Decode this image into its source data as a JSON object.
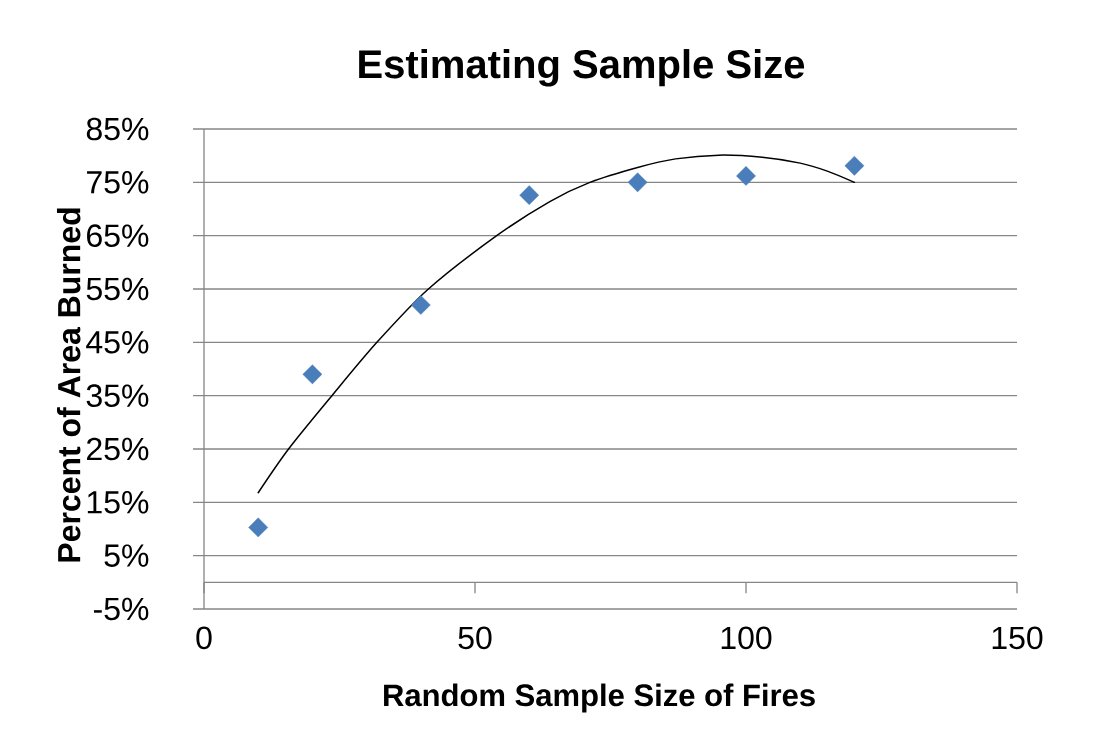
{
  "chart_data": {
    "type": "scatter",
    "title": "Estimating Sample Size",
    "xlabel": "Random Sample Size of Fires",
    "ylabel": "Percent of Area Burned",
    "series": [
      {
        "color": "#4a7ebb",
        "marker": "diamond",
        "x": [
          10,
          20,
          40,
          60,
          80,
          100,
          120
        ],
        "values": [
          10.3,
          39.0,
          52.0,
          72.6,
          75.0,
          76.2,
          78.1
        ]
      },
      {
        "type": "line",
        "color": "#000000",
        "marker": "none",
        "line_style": "solid",
        "x": [
          10,
          15.6,
          23.6,
          31.9,
          41.4,
          54,
          63.8,
          71.2,
          80,
          87,
          95,
          103,
          110,
          115,
          120
        ],
        "values": [
          16.8,
          25,
          35,
          45,
          55,
          65,
          71.4,
          75,
          77.8,
          79.4,
          80.1,
          79.7,
          78.6,
          77.1,
          75.0
        ]
      }
    ],
    "xlim": [
      0,
      150
    ],
    "xticks": [
      0,
      50,
      100,
      150
    ],
    "ylim": [
      -5,
      85
    ],
    "yticks": [
      {
        "value": -5,
        "label": "-5%"
      },
      {
        "value": 5,
        "label": "5%"
      },
      {
        "value": 15,
        "label": "15%"
      },
      {
        "value": 25,
        "label": "25%"
      },
      {
        "value": 35,
        "label": "35%"
      },
      {
        "value": 45,
        "label": "45%"
      },
      {
        "value": 55,
        "label": "55%"
      },
      {
        "value": 65,
        "label": "65%"
      },
      {
        "value": 75,
        "label": "75%"
      },
      {
        "value": 85,
        "label": "85%"
      }
    ],
    "grid": "y"
  }
}
